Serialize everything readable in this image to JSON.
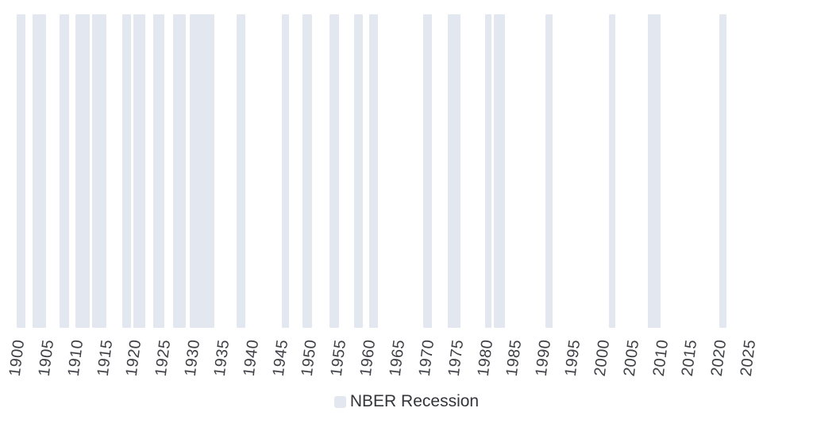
{
  "chart_data": {
    "type": "area",
    "title": "",
    "xlabel": "",
    "ylabel": "",
    "xlim": [
      1897,
      2036
    ],
    "x_ticks": [
      1900,
      1905,
      1910,
      1915,
      1920,
      1925,
      1930,
      1935,
      1940,
      1945,
      1950,
      1955,
      1960,
      1965,
      1970,
      1975,
      1980,
      1985,
      1990,
      1995,
      2000,
      2005,
      2010,
      2015,
      2020,
      2025
    ],
    "x_tick_rotation_deg": -83,
    "grid": false,
    "y_axis_visible": false,
    "legend_position": "bottom-center",
    "bands": [
      {
        "start": 1899.9,
        "end": 1901.4
      },
      {
        "start": 1902.5,
        "end": 1904.9
      },
      {
        "start": 1907.2,
        "end": 1908.8
      },
      {
        "start": 1909.9,
        "end": 1912.3
      },
      {
        "start": 1912.7,
        "end": 1915.2
      },
      {
        "start": 1917.9,
        "end": 1919.4
      },
      {
        "start": 1919.8,
        "end": 1921.8
      },
      {
        "start": 1923.2,
        "end": 1925.1
      },
      {
        "start": 1926.6,
        "end": 1928.7
      },
      {
        "start": 1929.5,
        "end": 1933.6
      },
      {
        "start": 1937.4,
        "end": 1938.9
      },
      {
        "start": 1945.2,
        "end": 1946.4
      },
      {
        "start": 1948.7,
        "end": 1950.4
      },
      {
        "start": 1953.3,
        "end": 1954.9
      },
      {
        "start": 1957.6,
        "end": 1959.0
      },
      {
        "start": 1960.1,
        "end": 1961.6
      },
      {
        "start": 1969.4,
        "end": 1970.9
      },
      {
        "start": 1973.6,
        "end": 1975.8
      },
      {
        "start": 1979.9,
        "end": 1981.1
      },
      {
        "start": 1981.4,
        "end": 1983.4
      },
      {
        "start": 1990.3,
        "end": 1991.5
      },
      {
        "start": 2001.1,
        "end": 2002.2
      },
      {
        "start": 2007.8,
        "end": 2010.0
      },
      {
        "start": 2020.0,
        "end": 2021.2
      }
    ],
    "legend": [
      {
        "label": "NBER Recession",
        "color": "#e3e8f0"
      }
    ],
    "colors": {
      "band": "#e3e8f0",
      "tick_text": "#3f4045",
      "legend_text": "#34353a",
      "background": "#ffffff"
    }
  }
}
